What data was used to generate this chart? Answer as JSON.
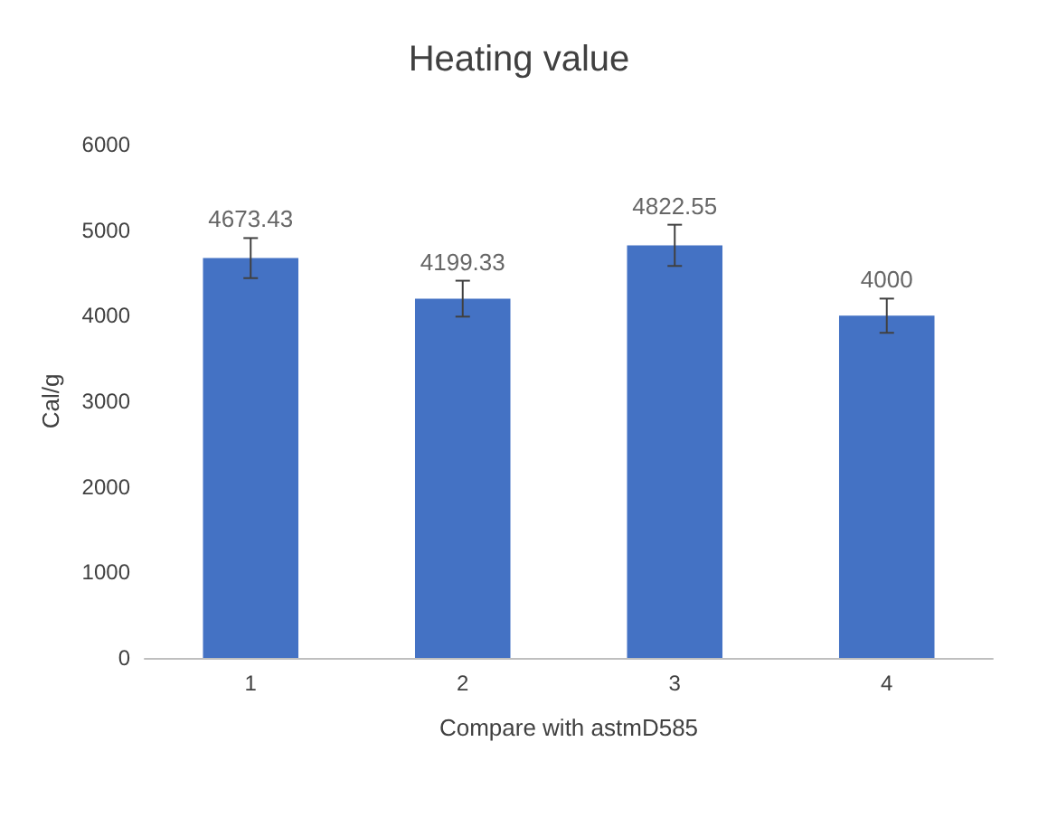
{
  "chart_data": {
    "type": "bar",
    "title": "Heating value",
    "xlabel": "Compare with astmD585",
    "ylabel": "Cal/g",
    "categories": [
      "1",
      "2",
      "3",
      "4"
    ],
    "values": [
      4673.43,
      4199.33,
      4822.55,
      4000
    ],
    "errors": [
      234,
      210,
      241,
      200
    ],
    "color": "#4472c4",
    "ylim": [
      0,
      6000
    ],
    "yticks": [
      0,
      1000,
      2000,
      3000,
      4000,
      5000,
      6000
    ],
    "grid": false,
    "data_labels": true
  }
}
